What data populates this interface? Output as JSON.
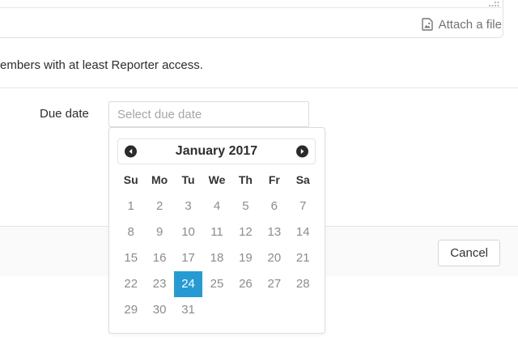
{
  "editor": {
    "attach_label": "Attach a file",
    "attach_icon": "file-image-icon",
    "resize_icon": "resize-grip-icon"
  },
  "help_text": "embers with at least Reporter access.",
  "form": {
    "due_date_label": "Due date",
    "due_date_placeholder": "Select due date"
  },
  "datepicker": {
    "month_year": "January 2017",
    "prev_icon": "chevron-left-circle-icon",
    "next_icon": "chevron-right-circle-icon",
    "weekdays": [
      "Su",
      "Mo",
      "Tu",
      "We",
      "Th",
      "Fr",
      "Sa"
    ],
    "weeks": [
      [
        "1",
        "2",
        "3",
        "4",
        "5",
        "6",
        "7"
      ],
      [
        "8",
        "9",
        "10",
        "11",
        "12",
        "13",
        "14"
      ],
      [
        "15",
        "16",
        "17",
        "18",
        "19",
        "20",
        "21"
      ],
      [
        "22",
        "23",
        "24",
        "25",
        "26",
        "27",
        "28"
      ],
      [
        "29",
        "30",
        "31",
        "",
        "",
        "",
        ""
      ]
    ],
    "selected_day": "24"
  },
  "footer": {
    "cancel_label": "Cancel"
  },
  "colors": {
    "selected_day_bg": "#269bd3",
    "footer_bg": "#fafafa",
    "accent_text": "#2e2e2e",
    "muted_text": "#8c8c8c"
  }
}
